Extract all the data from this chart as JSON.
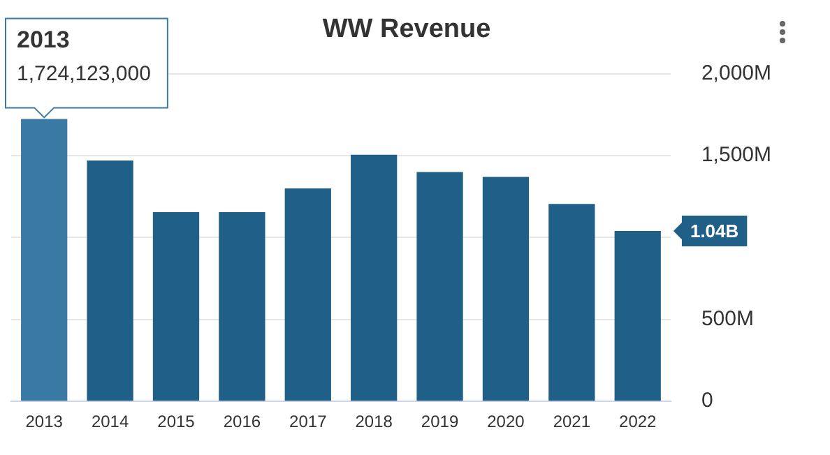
{
  "chart_data": {
    "type": "bar",
    "title": "WW Revenue",
    "categories": [
      "2013",
      "2014",
      "2015",
      "2016",
      "2017",
      "2018",
      "2019",
      "2020",
      "2021",
      "2022"
    ],
    "values": [
      1724.123,
      1470,
      1155,
      1155,
      1300,
      1505,
      1400,
      1370,
      1205,
      1040
    ],
    "colors": [
      "#3a79a3",
      "#1f5f88",
      "#1f5f88",
      "#1f5f88",
      "#1f5f88",
      "#1f5f88",
      "#1f5f88",
      "#1f5f88",
      "#1f5f88",
      "#1f5f88"
    ],
    "ylim": [
      0,
      2000
    ],
    "yticks": [
      0,
      {
        "value": 500,
        "label": "500M"
      },
      {
        "value": 1000,
        "label": null
      },
      {
        "value": 1500,
        "label": "1,500M"
      },
      {
        "value": 2000,
        "label": "2,000M"
      }
    ],
    "grid": "y",
    "legend": false,
    "annotations": [
      {
        "text": "2013",
        "x": "2013",
        "y": 1724.123
      },
      {
        "text": "1,724,123,000",
        "x": "2013",
        "y": 1724.123
      },
      {
        "text": "1.04B",
        "x": "2022",
        "y": 1040
      }
    ]
  }
}
